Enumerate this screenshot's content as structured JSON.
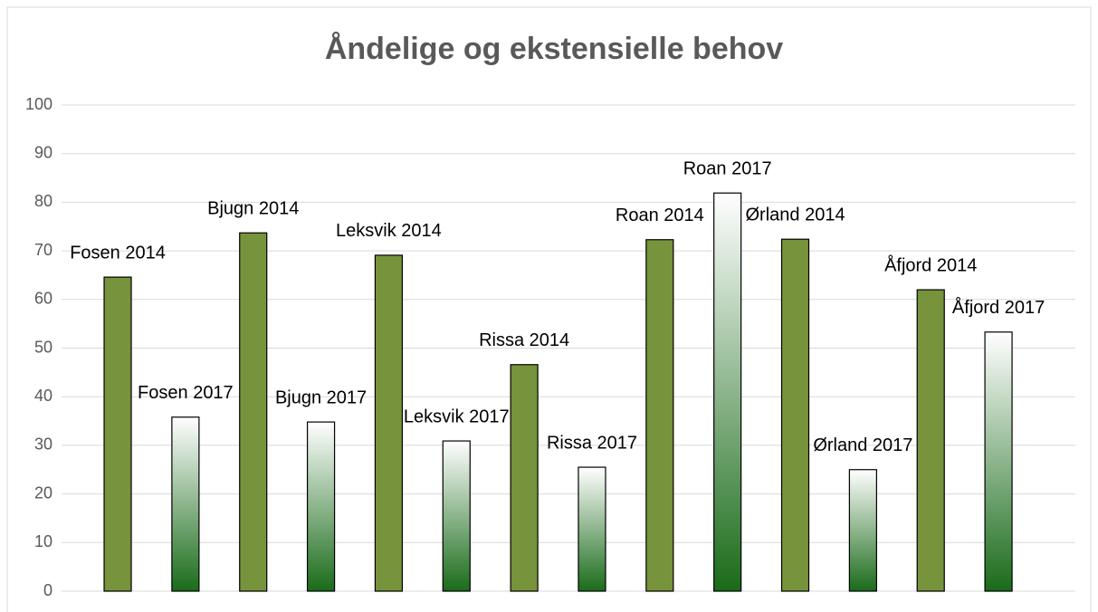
{
  "chart_data": {
    "type": "bar",
    "title": "Åndelige og ekstensielle behov",
    "categories": [
      "Fosen 2014",
      "Fosen 2017",
      "Bjugn 2014",
      "Bjugn 2017",
      "Leksvik 2014",
      "Leksvik 2017",
      "Rissa 2014",
      "Rissa 2017",
      "Roan 2014",
      "Roan 2017",
      "Ørland 2014",
      "Ørland 2017",
      "Åfjord 2014",
      "Åfjord 2017"
    ],
    "values": [
      64.6,
      35.8,
      73.7,
      34.8,
      69.1,
      30.9,
      46.6,
      25.5,
      72.3,
      81.9,
      72.4,
      25.0,
      62.0,
      53.3
    ],
    "colors": [
      "#77933c",
      [
        "#ffffff",
        "#1a6b1a"
      ],
      "#77933c",
      [
        "#ffffff",
        "#1a6b1a"
      ],
      "#77933c",
      [
        "#ffffff",
        "#1a6b1a"
      ],
      "#77933c",
      [
        "#ffffff",
        "#1a6b1a"
      ],
      "#77933c",
      [
        "#ffffff",
        "#1a6b1a"
      ],
      "#77933c",
      [
        "#ffffff",
        "#1a6b1a"
      ],
      "#77933c",
      [
        "#ffffff",
        "#1a6b1a"
      ]
    ],
    "ylim": [
      0,
      100
    ],
    "yticks": [
      0,
      10,
      20,
      30,
      40,
      50,
      60,
      70,
      80,
      90,
      100
    ],
    "grid": true
  }
}
